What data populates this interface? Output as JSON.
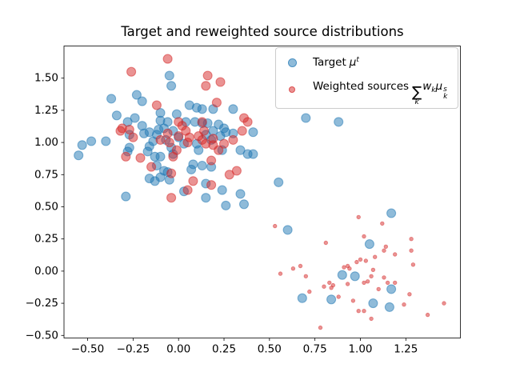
{
  "title": "Target and reweighted source distributions",
  "legend": {
    "items": [
      {
        "label": "Target",
        "math_mu": "μ",
        "math_sup": "t",
        "marker_color": "#1f77b4"
      },
      {
        "label": "Weighted sources",
        "sum": "∑",
        "sum_sub": "k",
        "w": "w",
        "w_sub": "k",
        "mu": "μ",
        "mu_sup": "s",
        "mu_sub": "k",
        "marker_color": "#d62728"
      }
    ]
  },
  "chart_data": {
    "type": "scatter",
    "title": "Target and reweighted source distributions",
    "xlabel": "",
    "ylabel": "",
    "grid": false,
    "legend_position": "upper right",
    "xlim": [
      -0.63,
      1.55
    ],
    "ylim": [
      -0.52,
      1.75
    ],
    "xticks": [
      -0.5,
      -0.25,
      0.0,
      0.25,
      0.5,
      0.75,
      1.0,
      1.25
    ],
    "xtick_labels": [
      "−0.50",
      "−0.25",
      "0.00",
      "0.25",
      "0.50",
      "0.75",
      "1.00",
      "1.25"
    ],
    "yticks": [
      -0.5,
      -0.25,
      0.0,
      0.25,
      0.5,
      0.75,
      1.0,
      1.25,
      1.5
    ],
    "ytick_labels": [
      "−0.50",
      "−0.25",
      "0.00",
      "0.25",
      "0.50",
      "0.75",
      "1.00",
      "1.25",
      "1.50"
    ],
    "series": [
      {
        "name": "Target μ^t",
        "color": "#1f77b4",
        "alpha": 0.5,
        "marker_radius_px": 5.5,
        "points": [
          [
            -0.05,
            1.52
          ],
          [
            -0.04,
            1.44
          ],
          [
            -0.37,
            1.34
          ],
          [
            -0.23,
            1.37
          ],
          [
            -0.2,
            1.32
          ],
          [
            -0.1,
            1.23
          ],
          [
            -0.34,
            1.21
          ],
          [
            -0.28,
            1.16
          ],
          [
            -0.24,
            1.19
          ],
          [
            -0.1,
            1.17
          ],
          [
            -0.06,
            1.16
          ],
          [
            -0.2,
            1.13
          ],
          [
            0.06,
            1.29
          ],
          [
            0.1,
            1.27
          ],
          [
            0.13,
            1.26
          ],
          [
            0.19,
            1.26
          ],
          [
            0.3,
            1.26
          ],
          [
            -0.01,
            1.22
          ],
          [
            0.04,
            1.16
          ],
          [
            0.09,
            1.16
          ],
          [
            0.13,
            1.15
          ],
          [
            0.16,
            1.15
          ],
          [
            0.22,
            1.14
          ],
          [
            0.25,
            1.11
          ],
          [
            -0.08,
            1.11
          ],
          [
            -0.03,
            1.09
          ],
          [
            -0.16,
            1.08
          ],
          [
            -0.12,
            1.06
          ],
          [
            -0.27,
            1.06
          ],
          [
            -0.19,
            1.07
          ],
          [
            -0.11,
            1.1
          ],
          [
            0.15,
            1.06
          ],
          [
            0.19,
            1.09
          ],
          [
            0.23,
            1.05
          ],
          [
            0.26,
            1.08
          ],
          [
            0.3,
            1.07
          ],
          [
            0.41,
            1.08
          ],
          [
            0.7,
            1.19
          ],
          [
            0.88,
            1.16
          ],
          [
            -0.55,
            0.9
          ],
          [
            -0.53,
            0.98
          ],
          [
            -0.48,
            1.01
          ],
          [
            -0.4,
            1.01
          ],
          [
            -0.27,
            0.96
          ],
          [
            -0.28,
            0.93
          ],
          [
            -0.16,
            0.97
          ],
          [
            -0.14,
            1.01
          ],
          [
            -0.07,
            1.02
          ],
          [
            0.0,
            1.04
          ],
          [
            -0.04,
            0.96
          ],
          [
            0.03,
            0.99
          ],
          [
            0.1,
            0.99
          ],
          [
            0.18,
            1.02
          ],
          [
            -0.17,
            0.93
          ],
          [
            -0.13,
            0.89
          ],
          [
            -0.1,
            0.89
          ],
          [
            -0.03,
            0.91
          ],
          [
            0.11,
            0.94
          ],
          [
            0.24,
            0.94
          ],
          [
            0.34,
            0.94
          ],
          [
            0.38,
            0.91
          ],
          [
            0.41,
            0.91
          ],
          [
            -0.12,
            0.82
          ],
          [
            0.07,
            0.79
          ],
          [
            0.08,
            0.83
          ],
          [
            0.13,
            0.82
          ],
          [
            0.18,
            0.81
          ],
          [
            -0.08,
            0.78
          ],
          [
            -0.06,
            0.77
          ],
          [
            -0.1,
            0.73
          ],
          [
            -0.05,
            0.71
          ],
          [
            -0.13,
            0.7
          ],
          [
            -0.16,
            0.72
          ],
          [
            0.15,
            0.68
          ],
          [
            0.03,
            0.62
          ],
          [
            0.15,
            0.57
          ],
          [
            0.24,
            0.63
          ],
          [
            0.34,
            0.6
          ],
          [
            0.26,
            0.51
          ],
          [
            0.36,
            0.52
          ],
          [
            -0.29,
            0.58
          ],
          [
            0.55,
            0.69
          ],
          [
            0.6,
            0.32
          ],
          [
            1.17,
            0.45
          ],
          [
            1.05,
            0.21
          ],
          [
            0.9,
            -0.03
          ],
          [
            0.97,
            -0.04
          ],
          [
            0.68,
            -0.21
          ],
          [
            0.84,
            -0.22
          ],
          [
            1.07,
            -0.25
          ],
          [
            1.16,
            -0.28
          ],
          [
            1.17,
            -0.14
          ]
        ]
      },
      {
        "name": "Weighted sources ∑_k w_k μ_k^s",
        "color": "#d62728",
        "alpha": 0.5,
        "note": "each point is [x, y, marker_radius_px]; radius scales with source weight",
        "points": [
          [
            -0.06,
            1.65,
            5.5
          ],
          [
            -0.26,
            1.55,
            5.5
          ],
          [
            0.16,
            1.52,
            5.5
          ],
          [
            0.23,
            1.47,
            5.5
          ],
          [
            0.15,
            1.44,
            5.5
          ],
          [
            -0.12,
            1.29,
            5.5
          ],
          [
            0.21,
            1.31,
            5.5
          ],
          [
            0.02,
            1.13,
            5.5
          ],
          [
            0.0,
            1.16,
            5.5
          ],
          [
            0.13,
            1.16,
            5.5
          ],
          [
            0.36,
            1.19,
            5.5
          ],
          [
            0.38,
            1.16,
            5.5
          ],
          [
            -0.31,
            1.11,
            5.5
          ],
          [
            -0.27,
            1.1,
            5.5
          ],
          [
            -0.32,
            1.09,
            5.5
          ],
          [
            0.04,
            1.09,
            5.5
          ],
          [
            0.14,
            1.09,
            5.5
          ],
          [
            0.35,
            1.09,
            5.5
          ],
          [
            -0.25,
            1.04,
            5.5
          ],
          [
            -0.1,
            1.02,
            5.5
          ],
          [
            -0.06,
            1.07,
            5.5
          ],
          [
            0.0,
            1.05,
            5.5
          ],
          [
            0.06,
            1.04,
            5.5
          ],
          [
            0.11,
            1.05,
            5.5
          ],
          [
            0.19,
            1.03,
            5.5
          ],
          [
            0.3,
            1.02,
            5.5
          ],
          [
            -0.05,
            1.0,
            5.5
          ],
          [
            0.05,
            1.0,
            5.5
          ],
          [
            0.13,
            1.02,
            5.5
          ],
          [
            0.15,
            0.99,
            5.5
          ],
          [
            0.19,
            0.98,
            5.5
          ],
          [
            0.25,
            0.99,
            5.5
          ],
          [
            -0.01,
            0.94,
            5.5
          ],
          [
            0.22,
            0.94,
            5.5
          ],
          [
            -0.29,
            0.89,
            5.5
          ],
          [
            -0.21,
            0.88,
            5.5
          ],
          [
            -0.03,
            0.89,
            5.5
          ],
          [
            0.18,
            0.86,
            5.5
          ],
          [
            -0.15,
            0.81,
            5.5
          ],
          [
            -0.04,
            0.76,
            5.5
          ],
          [
            0.28,
            0.75,
            5.5
          ],
          [
            0.32,
            0.78,
            5.5
          ],
          [
            0.08,
            0.7,
            5.5
          ],
          [
            0.18,
            0.67,
            5.5
          ],
          [
            0.05,
            0.63,
            5.5
          ],
          [
            -0.04,
            0.57,
            5.5
          ],
          [
            0.53,
            0.35,
            2.3
          ],
          [
            0.99,
            0.42,
            2.3
          ],
          [
            1.12,
            0.37,
            2.3
          ],
          [
            0.81,
            0.22,
            2.3
          ],
          [
            1.02,
            0.27,
            2.3
          ],
          [
            1.28,
            0.25,
            2.3
          ],
          [
            1.14,
            0.19,
            2.3
          ],
          [
            1.13,
            0.16,
            2.3
          ],
          [
            1.19,
            0.13,
            2.3
          ],
          [
            1.28,
            0.16,
            2.3
          ],
          [
            1.0,
            0.09,
            2.3
          ],
          [
            1.03,
            0.08,
            2.3
          ],
          [
            1.08,
            0.11,
            2.3
          ],
          [
            0.98,
            0.07,
            2.3
          ],
          [
            1.29,
            0.05,
            2.3
          ],
          [
            0.63,
            0.02,
            2.3
          ],
          [
            0.67,
            0.04,
            2.3
          ],
          [
            1.07,
            0.01,
            2.3
          ],
          [
            0.56,
            -0.02,
            2.3
          ],
          [
            0.7,
            -0.04,
            2.3
          ],
          [
            0.91,
            0.03,
            2.3
          ],
          [
            0.93,
            0.04,
            2.3
          ],
          [
            0.94,
            0.02,
            2.3
          ],
          [
            1.06,
            -0.04,
            2.3
          ],
          [
            1.13,
            -0.05,
            2.3
          ],
          [
            0.83,
            -0.09,
            2.3
          ],
          [
            0.85,
            -0.11,
            2.3
          ],
          [
            0.93,
            -0.1,
            2.3
          ],
          [
            1.02,
            -0.09,
            2.3
          ],
          [
            1.04,
            -0.08,
            2.3
          ],
          [
            1.15,
            -0.09,
            2.3
          ],
          [
            1.19,
            -0.09,
            2.3
          ],
          [
            1.1,
            -0.14,
            2.3
          ],
          [
            0.8,
            -0.12,
            2.3
          ],
          [
            0.84,
            -0.13,
            2.3
          ],
          [
            0.72,
            -0.16,
            2.3
          ],
          [
            0.88,
            -0.2,
            2.3
          ],
          [
            0.96,
            -0.23,
            2.3
          ],
          [
            1.27,
            -0.18,
            2.3
          ],
          [
            1.24,
            -0.26,
            2.3
          ],
          [
            1.46,
            -0.25,
            2.3
          ],
          [
            1.37,
            -0.34,
            2.3
          ],
          [
            0.99,
            -0.31,
            2.3
          ],
          [
            1.02,
            -0.31,
            2.3
          ],
          [
            1.06,
            -0.37,
            2.3
          ],
          [
            0.78,
            -0.44,
            2.3
          ]
        ]
      }
    ]
  }
}
